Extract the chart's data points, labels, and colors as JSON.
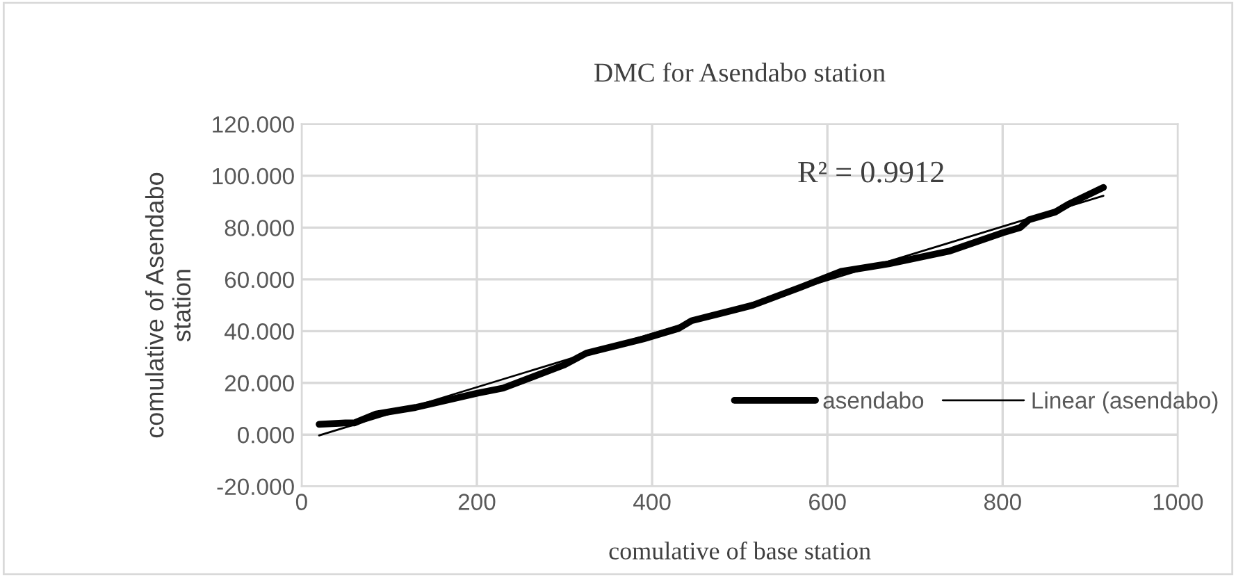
{
  "chart_data": {
    "type": "line",
    "title": "DMC for Asendabo station",
    "xlabel": "comulative of base station",
    "ylabel": "comulative of Asendabo\nstation",
    "xlim": [
      0,
      1000
    ],
    "xticks": [
      0,
      200,
      400,
      600,
      800,
      1000
    ],
    "ylim": [
      -20,
      120
    ],
    "yticks": [
      {
        "value": -20,
        "label": "-20.000"
      },
      {
        "value": 0,
        "label": "0.000"
      },
      {
        "value": 20,
        "label": "20.000"
      },
      {
        "value": 40,
        "label": "40.000"
      },
      {
        "value": 60,
        "label": "60.000"
      },
      {
        "value": 80,
        "label": "80.000"
      },
      {
        "value": 100,
        "label": "100.000"
      },
      {
        "value": 120,
        "label": "120.000"
      }
    ],
    "grid": true,
    "legend": "bottom right",
    "annotations": [
      "R² = 0.9912"
    ],
    "series": [
      {
        "name": "asendabo",
        "color": "#000000",
        "x": [
          20,
          50,
          60,
          85,
          130,
          200,
          230,
          300,
          325,
          390,
          430,
          445,
          480,
          515,
          570,
          615,
          670,
          740,
          800,
          820,
          830,
          860,
          875,
          915
        ],
        "values": [
          4,
          4.5,
          4.5,
          8,
          10.5,
          16,
          18,
          27,
          31.5,
          37,
          41,
          44,
          47,
          50,
          57,
          63,
          66,
          71,
          78,
          80,
          83,
          86,
          89,
          95.5
        ]
      },
      {
        "name": "Linear (asendabo)",
        "color": "#000000",
        "x": [
          20,
          915
        ],
        "values": [
          -0.3,
          92.3
        ]
      }
    ]
  }
}
